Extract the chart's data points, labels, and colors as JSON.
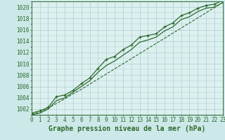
{
  "xlabel": "Graphe pression niveau de la mer (hPa)",
  "hours": [
    0,
    1,
    2,
    3,
    4,
    5,
    6,
    7,
    8,
    9,
    10,
    11,
    12,
    13,
    14,
    15,
    16,
    17,
    18,
    19,
    20,
    21,
    22,
    23
  ],
  "line_upper": [
    1001.3,
    1001.7,
    1002.3,
    1004.2,
    1004.5,
    1005.3,
    1006.5,
    1007.5,
    1009.2,
    1010.8,
    1011.3,
    1012.5,
    1013.3,
    1014.7,
    1015.0,
    1015.3,
    1016.5,
    1017.2,
    1018.5,
    1019.0,
    1019.8,
    1020.3,
    1020.5,
    1021.2
  ],
  "line_lower": [
    1001.0,
    1001.3,
    1002.0,
    1003.5,
    1004.0,
    1005.0,
    1006.0,
    1007.0,
    1008.5,
    1009.7,
    1010.5,
    1011.5,
    1012.5,
    1013.8,
    1014.2,
    1014.7,
    1015.8,
    1016.5,
    1017.8,
    1018.3,
    1019.2,
    1019.8,
    1020.0,
    1020.8
  ],
  "line_trend": [
    1001.1,
    1001.5,
    1002.2,
    1003.0,
    1003.8,
    1004.7,
    1005.5,
    1006.4,
    1007.3,
    1008.2,
    1009.1,
    1010.0,
    1010.9,
    1011.8,
    1012.7,
    1013.6,
    1014.5,
    1015.4,
    1016.3,
    1017.2,
    1018.1,
    1019.0,
    1019.9,
    1020.8
  ],
  "ylim_min": 1001.0,
  "ylim_max": 1021.0,
  "yticks": [
    1002,
    1004,
    1006,
    1008,
    1010,
    1012,
    1014,
    1016,
    1018,
    1020
  ],
  "bg_color": "#cce8e8",
  "plot_bg_color": "#ddf0f0",
  "line_color": "#2d6a2d",
  "grid_color": "#aacece",
  "xlabel_fontsize": 7.0,
  "tick_fontsize": 5.5
}
